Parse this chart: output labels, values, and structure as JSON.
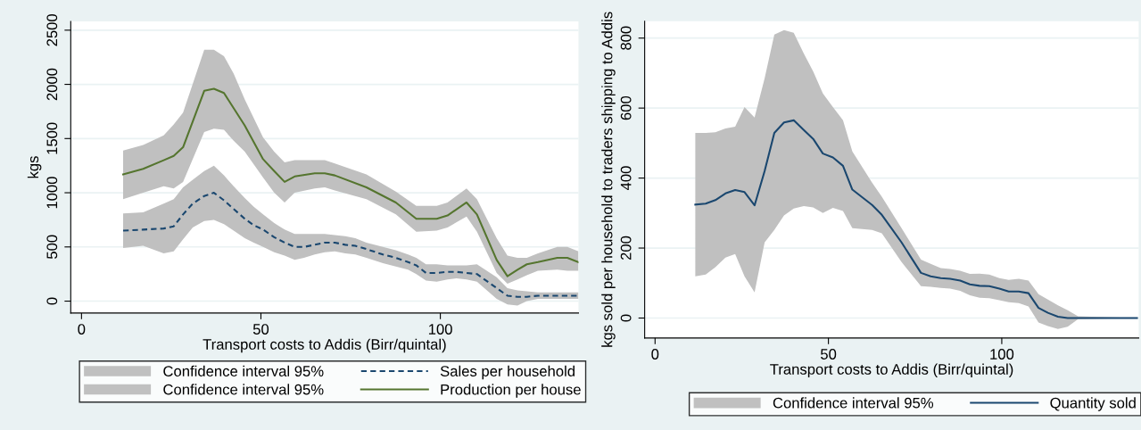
{
  "chart_data": [
    {
      "type": "line",
      "xlabel": "Transport costs to Addis (Birr/quintal)",
      "ylabel": "kgs",
      "xlim": [
        -3,
        138.5
      ],
      "ylim": [
        -110,
        2580
      ],
      "xticks": [
        0,
        50,
        100
      ],
      "yticks": [
        0,
        500,
        1000,
        1500,
        2000,
        2500
      ],
      "grid": "y",
      "legend": "bottom",
      "marker": "none",
      "annotations": [
        "Confidence interval 95%",
        "Confidence interval 95%"
      ],
      "series": [
        {
          "name": "Sales per household",
          "color": "#1a476f",
          "line_style": "dashed",
          "x": [
            11.6,
            17.2,
            22.9,
            25.7,
            28.3,
            31,
            34.2,
            36.9,
            39.7,
            42.4,
            45.5,
            48,
            50.6,
            53.7,
            56.6,
            59.4,
            62,
            65,
            67.8,
            70.6,
            73.5,
            76.3,
            79.4,
            84,
            87.6,
            91,
            93.3,
            96,
            99,
            102,
            104.5,
            107.3,
            110.2,
            115.7,
            118.7,
            121.5,
            124.1,
            127.2,
            132.6,
            135.4,
            138.5
          ],
          "values": [
            650,
            660,
            670,
            690,
            800,
            900,
            970,
            1000,
            930,
            850,
            760,
            700,
            660,
            590,
            540,
            500,
            500,
            520,
            540,
            540,
            520,
            510,
            480,
            430,
            400,
            360,
            330,
            260,
            260,
            270,
            270,
            260,
            250,
            120,
            50,
            40,
            40,
            50,
            50,
            50,
            50
          ],
          "upper": [
            810,
            820,
            900,
            940,
            1050,
            1120,
            1200,
            1250,
            1160,
            1060,
            950,
            870,
            800,
            720,
            660,
            620,
            620,
            620,
            620,
            610,
            600,
            580,
            540,
            500,
            470,
            430,
            400,
            340,
            340,
            330,
            330,
            330,
            340,
            220,
            120,
            100,
            90,
            80,
            80,
            80,
            80
          ],
          "lower": [
            490,
            510,
            440,
            460,
            570,
            680,
            740,
            750,
            710,
            650,
            580,
            540,
            500,
            450,
            420,
            380,
            400,
            430,
            450,
            460,
            440,
            430,
            400,
            350,
            320,
            290,
            250,
            190,
            180,
            200,
            210,
            200,
            180,
            20,
            -30,
            -40,
            0,
            20,
            20,
            20,
            20
          ]
        },
        {
          "name": "Production per house",
          "color": "#55752f",
          "line_style": "solid",
          "x": [
            11.6,
            17.2,
            22.9,
            25.7,
            28.3,
            34.2,
            36.9,
            39.7,
            42.4,
            45.5,
            50.6,
            53.7,
            56.6,
            59.4,
            65,
            67.8,
            70.6,
            79.4,
            87.6,
            93.3,
            99,
            102,
            107.3,
            110.2,
            115.7,
            118.7,
            121.5,
            124.1,
            127.2,
            132.6,
            135.4,
            138.5
          ],
          "values": [
            1170,
            1220,
            1300,
            1340,
            1420,
            1940,
            1960,
            1920,
            1780,
            1620,
            1310,
            1200,
            1100,
            1150,
            1180,
            1180,
            1160,
            1050,
            910,
            760,
            760,
            790,
            910,
            800,
            380,
            230,
            290,
            340,
            360,
            400,
            400,
            360
          ],
          "upper": [
            1390,
            1440,
            1530,
            1630,
            1740,
            2320,
            2320,
            2260,
            2100,
            1860,
            1510,
            1380,
            1280,
            1300,
            1300,
            1300,
            1270,
            1170,
            1010,
            880,
            880,
            910,
            1040,
            940,
            580,
            420,
            400,
            400,
            440,
            500,
            500,
            460
          ],
          "lower": [
            940,
            1000,
            1060,
            1040,
            1100,
            1560,
            1590,
            1580,
            1480,
            1380,
            1140,
            1000,
            910,
            1000,
            1040,
            1050,
            1020,
            940,
            800,
            640,
            650,
            680,
            780,
            640,
            260,
            160,
            200,
            240,
            280,
            290,
            280,
            280
          ]
        }
      ]
    },
    {
      "type": "line",
      "xlabel": "Transport costs to Addis (Birr/quintal)",
      "ylabel": "kgs sold per household to traders shipping to Addis",
      "xlim": [
        -3,
        139.5
      ],
      "ylim": [
        -57,
        848
      ],
      "xticks": [
        0,
        50,
        100
      ],
      "yticks": [
        0,
        200,
        400,
        600,
        800
      ],
      "grid": "y",
      "legend": "bottom",
      "marker": "none",
      "annotations": [
        "Confidence interval 95%"
      ],
      "series": [
        {
          "name": "Quantity sold",
          "color": "#1a476f",
          "line_style": "solid",
          "x": [
            11.6,
            14.6,
            17.4,
            20.3,
            23.1,
            25.8,
            28.7,
            31.6,
            34.4,
            37.2,
            40,
            42.9,
            45.6,
            48.4,
            51.3,
            54.2,
            56.9,
            62.6,
            65.4,
            71.1,
            76.7,
            79.5,
            82.4,
            85.1,
            88,
            90.8,
            93.6,
            96.4,
            99.3,
            102,
            104.9,
            107.7,
            110.6,
            113.3,
            116.2,
            119,
            122,
            139
          ],
          "values": [
            324,
            327,
            337,
            356,
            366,
            360,
            322,
            420,
            529,
            559,
            565,
            537,
            512,
            470,
            459,
            435,
            367,
            323,
            295,
            216,
            129,
            119,
            114,
            112,
            107,
            96,
            92,
            91,
            84,
            76,
            76,
            71,
            29,
            15,
            4,
            0,
            0,
            0
          ],
          "upper": [
            529,
            529,
            531,
            542,
            547,
            603,
            573,
            685,
            810,
            823,
            815,
            756,
            705,
            642,
            603,
            565,
            476,
            387,
            347,
            257,
            167,
            155,
            143,
            140,
            135,
            126,
            127,
            124,
            114,
            109,
            112,
            107,
            68,
            53,
            36,
            22,
            5,
            0
          ],
          "lower": [
            119,
            124,
            145,
            173,
            183,
            119,
            73,
            216,
            252,
            293,
            313,
            320,
            316,
            300,
            315,
            306,
            257,
            252,
            242,
            160,
            91,
            89,
            86,
            84,
            78,
            65,
            58,
            57,
            51,
            45,
            43,
            33,
            -13,
            -23,
            -31,
            -25,
            -3,
            0
          ]
        }
      ]
    }
  ]
}
